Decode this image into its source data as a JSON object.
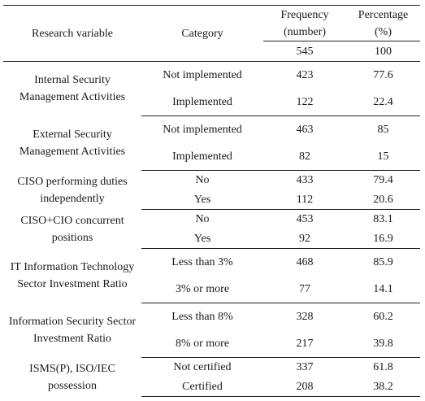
{
  "headers": {
    "research_variable": "Research variable",
    "category": "Category",
    "frequency": "Frequency (number)",
    "percentage": "Percentage (%)"
  },
  "totals": {
    "frequency": "545",
    "percentage": "100"
  },
  "groups": [
    {
      "variable": "Internal Security Management Activities",
      "rows": [
        {
          "category": "Not implemented",
          "frequency": "423",
          "percentage": "77.6"
        },
        {
          "category": "Implemented",
          "frequency": "122",
          "percentage": "22.4"
        }
      ]
    },
    {
      "variable": "External Security Management Activities",
      "rows": [
        {
          "category": "Not implemented",
          "frequency": "463",
          "percentage": "85"
        },
        {
          "category": "Implemented",
          "frequency": "82",
          "percentage": "15"
        }
      ]
    },
    {
      "variable": "CISO performing duties independently",
      "rows": [
        {
          "category": "No",
          "frequency": "433",
          "percentage": "79.4"
        },
        {
          "category": "Yes",
          "frequency": "112",
          "percentage": "20.6"
        }
      ]
    },
    {
      "variable": "CISO+CIO concurrent positions",
      "rows": [
        {
          "category": "No",
          "frequency": "453",
          "percentage": "83.1"
        },
        {
          "category": "Yes",
          "frequency": "92",
          "percentage": "16.9"
        }
      ]
    },
    {
      "variable": "IT Information Technology Sector Investment Ratio",
      "rows": [
        {
          "category": "Less than 3%",
          "frequency": "468",
          "percentage": "85.9"
        },
        {
          "category": "3% or more",
          "frequency": "77",
          "percentage": "14.1"
        }
      ]
    },
    {
      "variable": "Information Security Sector Investment Ratio",
      "rows": [
        {
          "category": "Less than 8%",
          "frequency": "328",
          "percentage": "60.2"
        },
        {
          "category": "8% or more",
          "frequency": "217",
          "percentage": "39.8"
        }
      ]
    },
    {
      "variable": "ISMS(P), ISO/IEC possession",
      "rows": [
        {
          "category": "Not certified",
          "frequency": "337",
          "percentage": "61.8"
        },
        {
          "category": "Certified",
          "frequency": "208",
          "percentage": "38.2"
        }
      ]
    }
  ]
}
